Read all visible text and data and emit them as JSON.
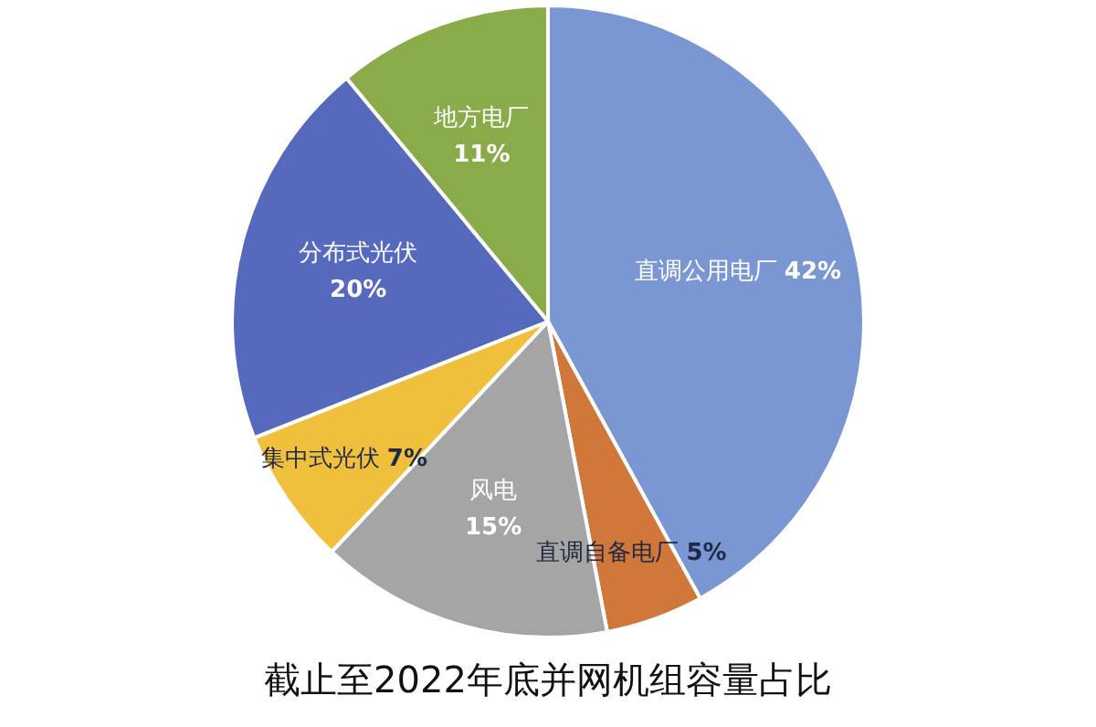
{
  "chart_data": {
    "type": "pie",
    "title": "截止至2022年底并网机组容量占比",
    "categories": [
      "直调公用电厂",
      "直调自备电厂",
      "风电",
      "集中式光伏",
      "分布式光伏",
      "地方电厂"
    ],
    "values": [
      42,
      5,
      15,
      7,
      20,
      11
    ],
    "value_labels": [
      "42%",
      "5%",
      "15%",
      "7%",
      "20%",
      "11%"
    ],
    "colors": [
      "#7b97d3",
      "#d0773a",
      "#a5a5a5",
      "#f0c03c",
      "#5569bd",
      "#8aab4a"
    ],
    "legend": false
  }
}
